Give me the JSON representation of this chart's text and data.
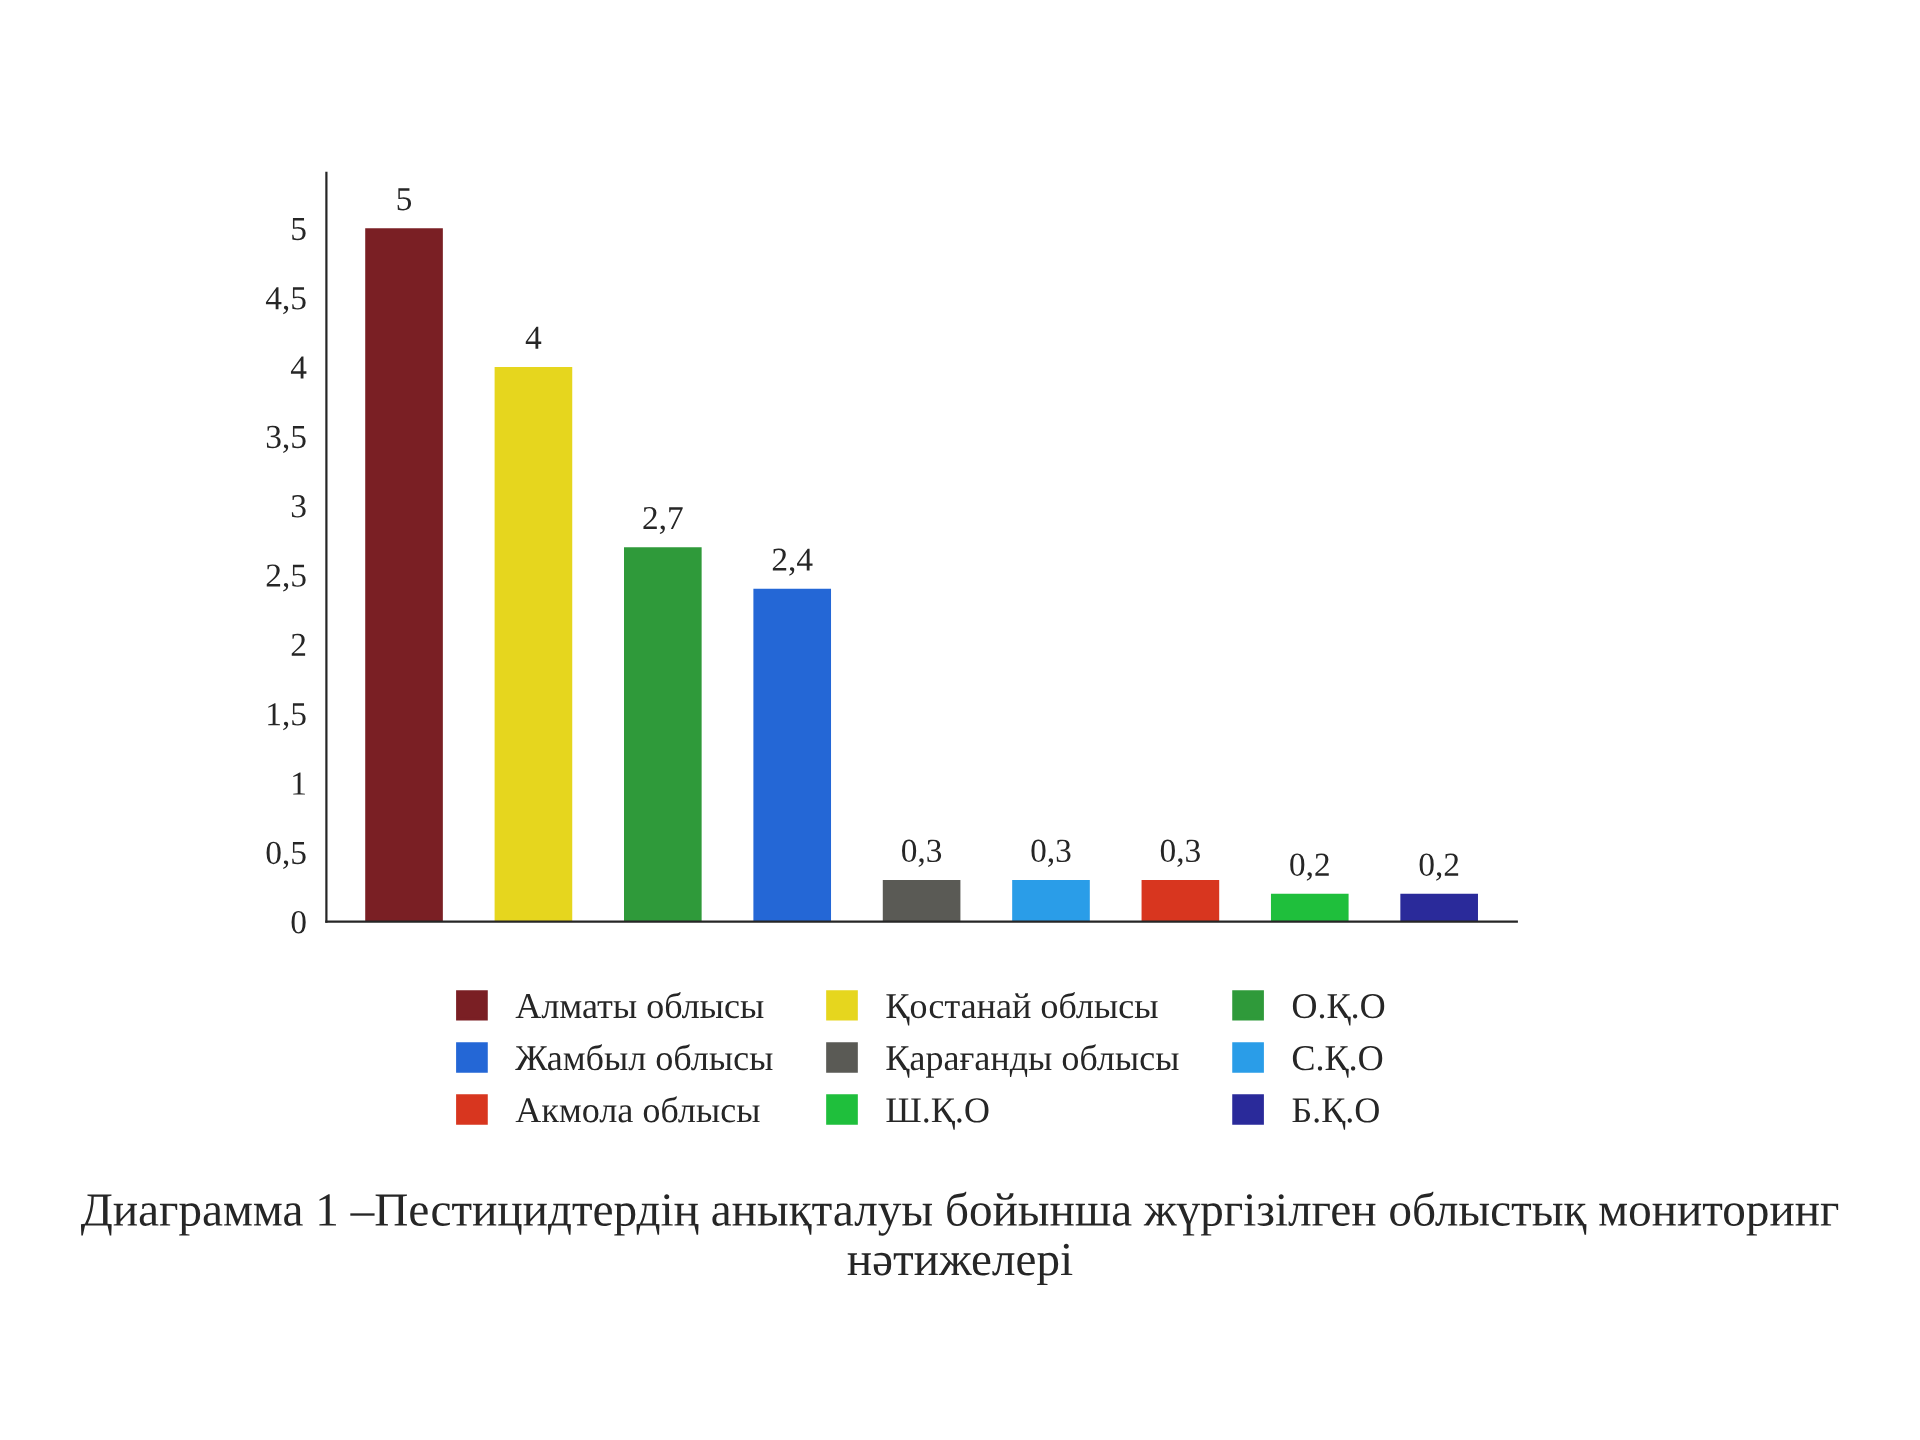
{
  "chart_data": {
    "type": "bar",
    "categories": [
      null,
      null,
      null,
      null,
      null,
      null,
      null,
      null,
      null
    ],
    "series": [
      {
        "name": "Алматы облысы",
        "color": "#7a1f24",
        "values": [
          5,
          null,
          null,
          null,
          null,
          null,
          null,
          null,
          null
        ],
        "value_labels": [
          "5",
          null,
          null,
          null,
          null,
          null,
          null,
          null,
          null
        ]
      },
      {
        "name": "Қостанай облысы",
        "color": "#e6d61e",
        "values": [
          null,
          4,
          null,
          null,
          null,
          null,
          null,
          null,
          null
        ],
        "value_labels": [
          null,
          "4",
          null,
          null,
          null,
          null,
          null,
          null,
          null
        ]
      },
      {
        "name": "О.Қ.О",
        "color": "#2f9a3a",
        "values": [
          null,
          null,
          2.7,
          null,
          null,
          null,
          null,
          null,
          null
        ],
        "value_labels": [
          null,
          null,
          "2,7",
          null,
          null,
          null,
          null,
          null,
          null
        ]
      },
      {
        "name": "Жамбыл облысы",
        "color": "#2467d6",
        "values": [
          null,
          null,
          null,
          2.4,
          null,
          null,
          null,
          null,
          null
        ],
        "value_labels": [
          null,
          null,
          null,
          "2,4",
          null,
          null,
          null,
          null,
          null
        ]
      },
      {
        "name": "Қарағанды облысы",
        "color": "#5a5a55",
        "values": [
          null,
          null,
          null,
          null,
          0.3,
          null,
          null,
          null,
          null
        ],
        "value_labels": [
          null,
          null,
          null,
          null,
          "0,3",
          null,
          null,
          null,
          null
        ]
      },
      {
        "name": "С.Қ.О",
        "color": "#2a9de8",
        "values": [
          null,
          null,
          null,
          null,
          null,
          0.3,
          null,
          null,
          null
        ],
        "value_labels": [
          null,
          null,
          null,
          null,
          null,
          "0,3",
          null,
          null,
          null
        ]
      },
      {
        "name": "Акмола облысы",
        "color": "#d8361f",
        "values": [
          null,
          null,
          null,
          null,
          null,
          null,
          0.3,
          null,
          null
        ],
        "value_labels": [
          null,
          null,
          null,
          null,
          null,
          null,
          "0,3",
          null,
          null
        ]
      },
      {
        "name": "Ш.Қ.О",
        "color": "#1fbf3c",
        "values": [
          null,
          null,
          null,
          null,
          null,
          null,
          null,
          0.2,
          null
        ],
        "value_labels": [
          null,
          null,
          null,
          null,
          null,
          null,
          null,
          "0,2",
          null
        ]
      },
      {
        "name": "Б.Қ.О",
        "color": "#2a2a9a",
        "values": [
          null,
          null,
          null,
          null,
          null,
          null,
          null,
          null,
          0.2
        ],
        "value_labels": [
          null,
          null,
          null,
          null,
          null,
          null,
          null,
          null,
          "0,2"
        ]
      }
    ],
    "ylim": [
      0,
      5.4
    ],
    "yticks": [
      0,
      {
        "value": 0.5,
        "label": "0,5"
      },
      1,
      {
        "value": 1.5,
        "label": "1,5"
      },
      2,
      {
        "value": 2.5,
        "label": "2,5"
      },
      3,
      {
        "value": 3.5,
        "label": "3,5"
      },
      4,
      {
        "value": 4.5,
        "label": "4,5"
      },
      5
    ],
    "tick_labels": "y",
    "legend": "bottom",
    "grid": false,
    "annotations": [
      "Диаграмма 1 –Пестицидтердің анықталуы бойынша жүргізілген облыстық мониторинг нәтижелері"
    ]
  }
}
